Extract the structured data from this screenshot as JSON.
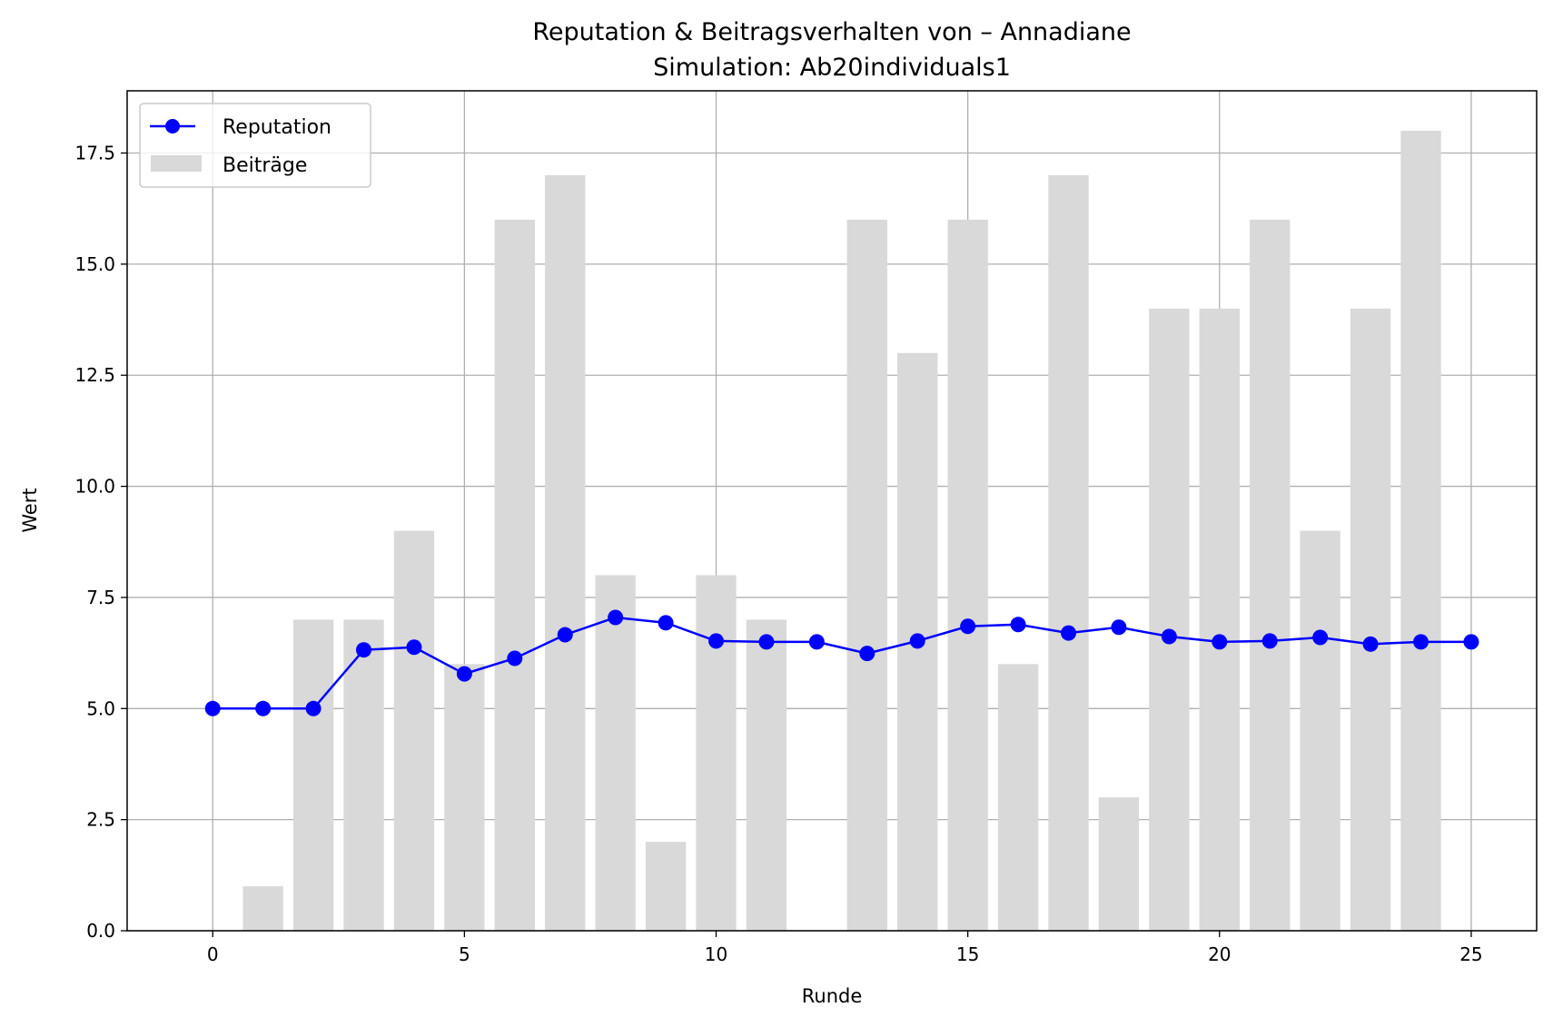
{
  "chart_data": {
    "type": "bar",
    "title": "Reputation & Beitragsverhalten von – Annadiane",
    "subtitle": "Simulation: Ab20individuals1",
    "xlabel": "Runde",
    "ylabel": "Wert",
    "xlim": [
      -1.7,
      26.3
    ],
    "ylim": [
      0,
      18.9
    ],
    "x_ticks": [
      0,
      5,
      10,
      15,
      20,
      25
    ],
    "x_tick_labels": [
      "0",
      "5",
      "10",
      "15",
      "20",
      "25"
    ],
    "y_ticks": [
      0,
      2.5,
      5,
      7.5,
      10,
      12.5,
      15,
      17.5
    ],
    "y_tick_labels": [
      "0.0",
      "2.5",
      "5.0",
      "7.5",
      "10.0",
      "12.5",
      "15.0",
      "17.5"
    ],
    "grid": true,
    "legend_position": "top-left",
    "x": [
      0,
      1,
      2,
      3,
      4,
      5,
      6,
      7,
      8,
      9,
      10,
      11,
      12,
      13,
      14,
      15,
      16,
      17,
      18,
      19,
      20,
      21,
      22,
      23,
      24,
      25
    ],
    "series": [
      {
        "name": "Reputation",
        "kind": "line",
        "color": "#0000ff",
        "marker": "circle",
        "values": [
          5.0,
          5.0,
          5.0,
          6.32,
          6.38,
          5.78,
          6.13,
          6.66,
          7.05,
          6.93,
          6.52,
          6.5,
          6.5,
          6.24,
          6.52,
          6.85,
          6.89,
          6.7,
          6.83,
          6.62,
          6.5,
          6.52,
          6.6,
          6.45,
          6.5,
          6.5
        ]
      },
      {
        "name": "Beiträge",
        "kind": "bar",
        "color": "#d9d9d9",
        "values": [
          0,
          1,
          7,
          7,
          9,
          6,
          16,
          17,
          8,
          2,
          8,
          7,
          0,
          16,
          13,
          16,
          6,
          17,
          3,
          14,
          14,
          16,
          9,
          14,
          18,
          null
        ]
      }
    ]
  }
}
